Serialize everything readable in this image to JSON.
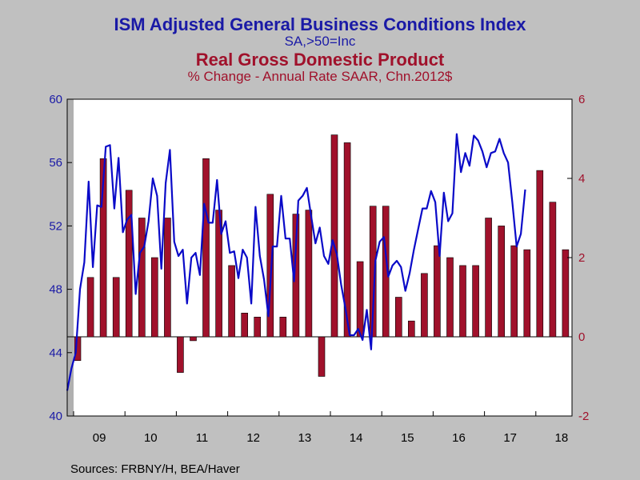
{
  "titles": {
    "line1": "ISM Adjusted General Business Conditions Index",
    "line2": "SA,>50=Inc",
    "line3": "Real Gross Domestic Product",
    "line4": "% Change - Annual Rate     SAAR, Chn.2012$"
  },
  "sources": "Sources:  FRBNY/H, BEA/Haver",
  "colors": {
    "line": "#0a0ac8",
    "bar": "#a0112b",
    "axis_left": "#1a1aa6",
    "axis_right": "#a0112b"
  },
  "chart_data": {
    "type": "bar+line",
    "x_ticks": [
      "09",
      "10",
      "11",
      "12",
      "13",
      "14",
      "15",
      "16",
      "17",
      "18"
    ],
    "y_left": {
      "ylim": [
        40,
        60
      ],
      "ticks": [
        40,
        44,
        48,
        52,
        56,
        60
      ]
    },
    "y_right": {
      "ylim": [
        -2,
        6
      ],
      "ticks": [
        -2,
        0,
        2,
        4,
        6
      ]
    },
    "series": [
      {
        "name": "ISM Adjusted General Business Conditions Index",
        "type": "line",
        "axis": "left",
        "start": "2009-01",
        "frequency": "monthly",
        "values": [
          41.6,
          43.0,
          44.0,
          48.0,
          49.7,
          54.8,
          49.4,
          53.3,
          53.2,
          57.0,
          57.1,
          53.1,
          56.3,
          51.6,
          52.4,
          52.7,
          47.7,
          50.3,
          50.7,
          52.3,
          55.0,
          53.9,
          49.3,
          54.7,
          56.8,
          51.0,
          50.1,
          50.5,
          47.1,
          50.0,
          50.3,
          48.9,
          53.4,
          52.2,
          52.2,
          54.9,
          51.5,
          52.3,
          50.3,
          50.4,
          48.7,
          50.5,
          50.0,
          47.1,
          53.2,
          50.1,
          48.6,
          46.3,
          50.7,
          50.7,
          53.9,
          51.2,
          51.2,
          48.5,
          53.6,
          53.9,
          54.4,
          52.6,
          50.9,
          51.9,
          50.1,
          49.6,
          51.1,
          50.2,
          48.3,
          46.8,
          45.1,
          45.1,
          45.5,
          44.8,
          46.7,
          44.2,
          49.8,
          51.0,
          51.3,
          48.8,
          49.5,
          49.8,
          49.4,
          47.9,
          49.0,
          50.5,
          51.8,
          53.1,
          53.1,
          54.2,
          53.5,
          50.1,
          54.1,
          52.3,
          52.8,
          57.8,
          55.4,
          56.6,
          55.8,
          57.7,
          57.4,
          56.7,
          55.7,
          56.6,
          56.7,
          57.5,
          56.6,
          56.0,
          53.5,
          50.7,
          51.5,
          54.3
        ]
      },
      {
        "name": "Real Gross Domestic Product",
        "type": "bar",
        "axis": "right",
        "start": "2009-Q1",
        "frequency": "quarterly",
        "values": [
          -0.6,
          1.5,
          4.5,
          1.5,
          3.7,
          3.0,
          2.0,
          3.0,
          -0.9,
          -0.1,
          4.5,
          3.2,
          1.8,
          0.6,
          0.5,
          3.6,
          0.5,
          3.1,
          3.2,
          -1.0,
          5.1,
          4.9,
          1.9,
          3.3,
          3.3,
          1.0,
          0.4,
          1.6,
          2.3,
          2.0,
          1.8,
          1.8,
          3.0,
          2.8,
          2.3,
          2.2,
          4.2,
          3.4,
          2.2
        ]
      }
    ]
  }
}
